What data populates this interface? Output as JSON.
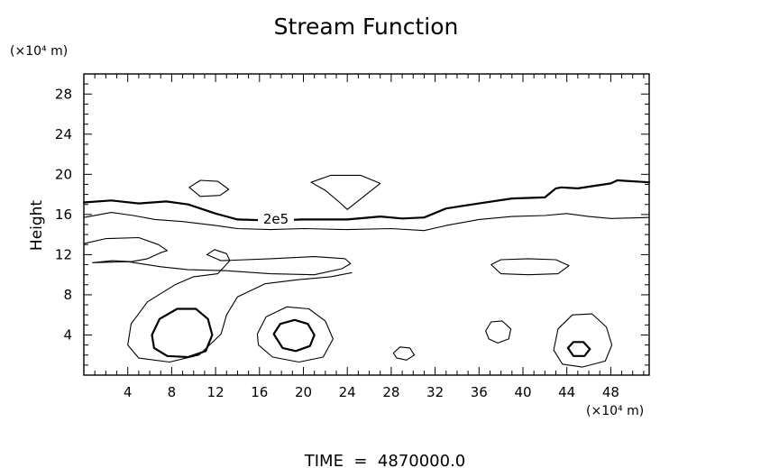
{
  "chart_data": {
    "type": "contour",
    "title": "Stream Function",
    "xlabel": "",
    "x_unit_label": "(×10⁴ m)",
    "ylabel": "Height",
    "y_unit_label": "(×10⁴ m)",
    "xlim": [
      0,
      51.5
    ],
    "ylim": [
      0,
      30
    ],
    "x_ticks": [
      4,
      8,
      12,
      16,
      20,
      24,
      28,
      32,
      36,
      40,
      44,
      48
    ],
    "y_ticks": [
      4,
      8,
      12,
      16,
      20,
      24,
      28
    ],
    "grid": false,
    "contour_label": "2e5",
    "footer": "TIME  =  4870000.0",
    "contours": [
      {
        "name": "labeled-2e5",
        "heavy": true,
        "closed": false,
        "points": [
          [
            0,
            17.2
          ],
          [
            2.5,
            17.4
          ],
          [
            5,
            17.1
          ],
          [
            7.5,
            17.3
          ],
          [
            9.5,
            17.0
          ],
          [
            12,
            16.1
          ],
          [
            14,
            15.5
          ],
          [
            17,
            15.4
          ],
          [
            20,
            15.5
          ],
          [
            24,
            15.5
          ],
          [
            27,
            15.8
          ],
          [
            29,
            15.6
          ],
          [
            31,
            15.7
          ],
          [
            33,
            16.6
          ],
          [
            36,
            17.1
          ],
          [
            39,
            17.6
          ],
          [
            42,
            17.7
          ],
          [
            43,
            18.6
          ],
          [
            43.5,
            18.7
          ],
          [
            45,
            18.6
          ],
          [
            48,
            19.1
          ],
          [
            48.6,
            19.4
          ],
          [
            51.5,
            19.2
          ]
        ]
      },
      {
        "name": "upper-thin",
        "heavy": false,
        "closed": false,
        "points": [
          [
            0,
            15.7
          ],
          [
            2.5,
            16.2
          ],
          [
            4.5,
            15.9
          ],
          [
            6.5,
            15.5
          ],
          [
            9,
            15.3
          ],
          [
            12,
            14.9
          ],
          [
            14,
            14.6
          ],
          [
            17,
            14.5
          ],
          [
            20,
            14.6
          ],
          [
            24,
            14.5
          ],
          [
            28,
            14.6
          ],
          [
            31,
            14.4
          ],
          [
            33,
            14.9
          ],
          [
            36,
            15.5
          ],
          [
            39,
            15.8
          ],
          [
            42,
            15.9
          ],
          [
            44,
            16.1
          ],
          [
            46,
            15.8
          ],
          [
            48,
            15.6
          ],
          [
            51.5,
            15.7
          ]
        ]
      },
      {
        "name": "mid-layer",
        "heavy": false,
        "closed": false,
        "points": [
          [
            0,
            13.1
          ],
          [
            2,
            13.6
          ],
          [
            5,
            13.7
          ],
          [
            6.8,
            13.0
          ],
          [
            7.6,
            12.4
          ],
          [
            7,
            12.2
          ],
          [
            5.8,
            11.6
          ],
          [
            4.3,
            11.3
          ],
          [
            2.6,
            11.4
          ],
          [
            0.8,
            11.2
          ],
          [
            4,
            11.3
          ],
          [
            7,
            10.8
          ],
          [
            9.5,
            10.5
          ],
          [
            13,
            10.4
          ],
          [
            17,
            10.1
          ],
          [
            21,
            10.0
          ],
          [
            23.5,
            10.6
          ],
          [
            24.3,
            11.1
          ],
          [
            23.8,
            11.6
          ],
          [
            21,
            11.8
          ],
          [
            17,
            11.6
          ],
          [
            12.5,
            11.4
          ],
          [
            11.2,
            12.0
          ],
          [
            11.9,
            12.5
          ],
          [
            13,
            12.1
          ],
          [
            13.3,
            11.4
          ],
          [
            12.2,
            10.1
          ],
          [
            10,
            9.8
          ],
          [
            8.3,
            9.0
          ],
          [
            5.8,
            7.3
          ],
          [
            4.3,
            5.1
          ],
          [
            4,
            3.0
          ],
          [
            5,
            1.7
          ],
          [
            7.8,
            1.3
          ],
          [
            10.5,
            2.0
          ],
          [
            12.5,
            4.1
          ],
          [
            13,
            6.0
          ],
          [
            14,
            7.8
          ],
          [
            16.5,
            9.1
          ],
          [
            19.5,
            9.5
          ],
          [
            22.5,
            9.8
          ],
          [
            24.4,
            10.2
          ]
        ]
      },
      {
        "name": "vortex-a-outer",
        "heavy": true,
        "closed": true,
        "points": [
          [
            6.2,
            4.0
          ],
          [
            6.9,
            5.6
          ],
          [
            8.5,
            6.6
          ],
          [
            10.2,
            6.6
          ],
          [
            11.3,
            5.6
          ],
          [
            11.7,
            4.0
          ],
          [
            11.1,
            2.4
          ],
          [
            9.5,
            1.8
          ],
          [
            7.6,
            1.9
          ],
          [
            6.4,
            2.7
          ]
        ]
      },
      {
        "name": "vortex-b-outer",
        "heavy": false,
        "closed": true,
        "points": [
          [
            15.8,
            4.1
          ],
          [
            16.6,
            5.8
          ],
          [
            18.5,
            6.8
          ],
          [
            20.5,
            6.6
          ],
          [
            22,
            5.4
          ],
          [
            22.7,
            3.6
          ],
          [
            21.8,
            1.8
          ],
          [
            19.6,
            1.3
          ],
          [
            17.2,
            1.8
          ],
          [
            15.9,
            3.0
          ]
        ]
      },
      {
        "name": "vortex-b-inner",
        "heavy": true,
        "closed": true,
        "points": [
          [
            17.3,
            4.1
          ],
          [
            17.9,
            5.1
          ],
          [
            19.2,
            5.5
          ],
          [
            20.4,
            5.1
          ],
          [
            21,
            4.0
          ],
          [
            20.6,
            2.9
          ],
          [
            19.3,
            2.4
          ],
          [
            18.1,
            2.7
          ]
        ]
      },
      {
        "name": "vortex-c-outer",
        "heavy": false,
        "closed": true,
        "points": [
          [
            42.8,
            2.5
          ],
          [
            43.2,
            4.6
          ],
          [
            44.5,
            6.0
          ],
          [
            46.3,
            6.1
          ],
          [
            47.6,
            4.8
          ],
          [
            48.1,
            3.0
          ],
          [
            47.5,
            1.4
          ],
          [
            45.4,
            0.8
          ],
          [
            43.6,
            1.1
          ]
        ]
      },
      {
        "name": "vortex-c-inner",
        "heavy": true,
        "closed": true,
        "points": [
          [
            44.1,
            2.7
          ],
          [
            44.6,
            3.3
          ],
          [
            45.5,
            3.3
          ],
          [
            46.1,
            2.6
          ],
          [
            45.6,
            1.9
          ],
          [
            44.6,
            1.9
          ]
        ]
      },
      {
        "name": "cell-38-4",
        "heavy": false,
        "closed": true,
        "points": [
          [
            36.6,
            4.4
          ],
          [
            37.1,
            5.3
          ],
          [
            38.1,
            5.4
          ],
          [
            38.9,
            4.6
          ],
          [
            38.7,
            3.6
          ],
          [
            37.7,
            3.2
          ],
          [
            36.9,
            3.6
          ]
        ]
      },
      {
        "name": "cell-29-2",
        "heavy": false,
        "closed": true,
        "points": [
          [
            28.2,
            2.2
          ],
          [
            28.8,
            2.8
          ],
          [
            29.7,
            2.7
          ],
          [
            30.1,
            2.0
          ],
          [
            29.4,
            1.5
          ],
          [
            28.5,
            1.7
          ]
        ]
      },
      {
        "name": "cell-10-19",
        "heavy": false,
        "closed": true,
        "points": [
          [
            9.6,
            18.7
          ],
          [
            10.6,
            19.4
          ],
          [
            12.2,
            19.3
          ],
          [
            13.2,
            18.5
          ],
          [
            12.4,
            17.9
          ],
          [
            10.6,
            17.8
          ]
        ]
      },
      {
        "name": "cell-24-19",
        "heavy": false,
        "closed": true,
        "points": [
          [
            20.7,
            19.2
          ],
          [
            22.5,
            19.9
          ],
          [
            25.2,
            19.9
          ],
          [
            27.0,
            19.1
          ],
          [
            25.5,
            17.8
          ],
          [
            24.0,
            16.5
          ],
          [
            23.3,
            17.2
          ],
          [
            22.0,
            18.4
          ]
        ]
      },
      {
        "name": "cell-41-11",
        "heavy": false,
        "closed": true,
        "points": [
          [
            37.1,
            11.0
          ],
          [
            38.0,
            11.5
          ],
          [
            40.5,
            11.6
          ],
          [
            43.0,
            11.5
          ],
          [
            44.2,
            10.9
          ],
          [
            43.2,
            10.1
          ],
          [
            40.5,
            10.0
          ],
          [
            38.0,
            10.1
          ]
        ]
      }
    ]
  }
}
